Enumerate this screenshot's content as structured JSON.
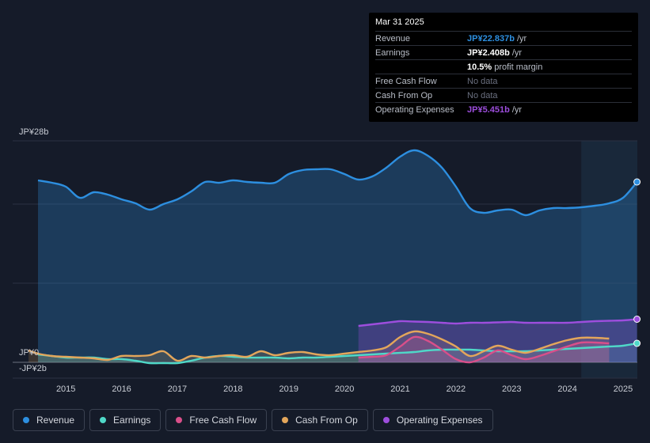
{
  "tooltip": {
    "date": "Mar 31 2025",
    "rows": [
      {
        "label": "Revenue",
        "value": "JP¥22.837b",
        "unit": "/yr",
        "color": "#2d8fe0"
      },
      {
        "label": "Earnings",
        "value": "JP¥2.408b",
        "unit": "/yr",
        "color": "#ffffff"
      },
      {
        "label": "",
        "value": "10.5%",
        "unit": "profit margin",
        "color": "#ffffff"
      },
      {
        "label": "Free Cash Flow",
        "value": "No data",
        "unit": "",
        "color": "#6b7080"
      },
      {
        "label": "Cash From Op",
        "value": "No data",
        "unit": "",
        "color": "#6b7080"
      },
      {
        "label": "Operating Expenses",
        "value": "JP¥5.451b",
        "unit": "/yr",
        "color": "#9d4edd"
      }
    ]
  },
  "legend": [
    {
      "label": "Revenue",
      "color": "#2d8fe0"
    },
    {
      "label": "Earnings",
      "color": "#4fd8c8"
    },
    {
      "label": "Free Cash Flow",
      "color": "#d94f8a"
    },
    {
      "label": "Cash From Op",
      "color": "#e3a65b"
    },
    {
      "label": "Operating Expenses",
      "color": "#9d4edd"
    }
  ],
  "chart_data": {
    "type": "area",
    "title": "",
    "y_top_label": "JP¥28b",
    "y_zero_label": "JP¥0",
    "y_bottom_label": "-JP¥2b",
    "ylim": [
      -2,
      28
    ],
    "xlim": [
      2014.33,
      2025.25
    ],
    "x_ticks": [
      "2015",
      "2016",
      "2017",
      "2018",
      "2019",
      "2020",
      "2021",
      "2022",
      "2023",
      "2024",
      "2025"
    ],
    "x_tick_values": [
      2015,
      2016,
      2017,
      2018,
      2019,
      2020,
      2021,
      2022,
      2023,
      2024,
      2025
    ],
    "forecast_start": 2024.25,
    "series": [
      {
        "name": "Revenue",
        "color": "#2d8fe0",
        "fill": true,
        "x": [
          2014.5,
          2014.75,
          2015.0,
          2015.25,
          2015.5,
          2015.75,
          2016.0,
          2016.25,
          2016.5,
          2016.75,
          2017.0,
          2017.25,
          2017.5,
          2017.75,
          2018.0,
          2018.25,
          2018.5,
          2018.75,
          2019.0,
          2019.25,
          2019.5,
          2019.75,
          2020.0,
          2020.25,
          2020.5,
          2020.75,
          2021.0,
          2021.25,
          2021.5,
          2021.75,
          2022.0,
          2022.25,
          2022.5,
          2022.75,
          2023.0,
          2023.25,
          2023.5,
          2023.75,
          2024.0,
          2024.25,
          2024.5,
          2024.75,
          2025.0,
          2025.25
        ],
        "values": [
          23.0,
          22.7,
          22.2,
          20.8,
          21.5,
          21.2,
          20.6,
          20.1,
          19.3,
          20.0,
          20.6,
          21.6,
          22.8,
          22.7,
          23.0,
          22.8,
          22.7,
          22.7,
          23.8,
          24.3,
          24.4,
          24.4,
          23.8,
          23.1,
          23.5,
          24.6,
          26.0,
          26.8,
          26.1,
          24.6,
          22.2,
          19.5,
          18.9,
          19.2,
          19.3,
          18.6,
          19.2,
          19.5,
          19.5,
          19.6,
          19.8,
          20.1,
          20.8,
          22.8
        ]
      },
      {
        "name": "Earnings",
        "color": "#4fd8c8",
        "fill": true,
        "x": [
          2014.5,
          2014.75,
          2015.0,
          2015.25,
          2015.5,
          2015.75,
          2016.0,
          2016.25,
          2016.5,
          2016.75,
          2017.0,
          2017.25,
          2017.5,
          2017.75,
          2018.0,
          2018.25,
          2018.5,
          2018.75,
          2019.0,
          2019.25,
          2019.5,
          2019.75,
          2020.0,
          2020.25,
          2020.5,
          2020.75,
          2021.0,
          2021.25,
          2021.5,
          2021.75,
          2022.0,
          2022.25,
          2022.5,
          2022.75,
          2023.0,
          2023.25,
          2023.5,
          2023.75,
          2024.0,
          2024.25,
          2024.5,
          2024.75,
          2025.0,
          2025.25
        ],
        "values": [
          1.0,
          0.8,
          0.6,
          0.6,
          0.6,
          0.4,
          0.4,
          0.2,
          -0.1,
          -0.1,
          -0.1,
          0.2,
          0.6,
          0.8,
          0.7,
          0.6,
          0.6,
          0.6,
          0.5,
          0.6,
          0.6,
          0.7,
          0.8,
          0.9,
          1.0,
          1.1,
          1.2,
          1.3,
          1.5,
          1.6,
          1.6,
          1.6,
          1.5,
          1.4,
          1.4,
          1.4,
          1.5,
          1.6,
          1.7,
          1.8,
          1.9,
          2.0,
          2.1,
          2.4
        ]
      },
      {
        "name": "Free Cash Flow",
        "color": "#d94f8a",
        "fill": true,
        "x": [
          2020.25,
          2020.5,
          2020.75,
          2021.0,
          2021.25,
          2021.5,
          2021.75,
          2022.0,
          2022.25,
          2022.5,
          2022.75,
          2023.0,
          2023.25,
          2023.5,
          2023.75,
          2024.0,
          2024.25,
          2024.5,
          2024.75
        ],
        "values": [
          0.6,
          0.7,
          0.9,
          2.0,
          3.2,
          2.7,
          1.6,
          0.4,
          0.0,
          0.6,
          1.5,
          0.9,
          0.4,
          0.8,
          1.4,
          2.0,
          2.5,
          2.5,
          2.4
        ]
      },
      {
        "name": "Cash From Op",
        "color": "#e3a65b",
        "fill": true,
        "x": [
          2014.33,
          2014.5,
          2014.75,
          2015.0,
          2015.25,
          2015.5,
          2015.75,
          2016.0,
          2016.25,
          2016.5,
          2016.75,
          2017.0,
          2017.25,
          2017.5,
          2017.75,
          2018.0,
          2018.25,
          2018.5,
          2018.75,
          2019.0,
          2019.25,
          2019.5,
          2019.75,
          2020.0,
          2020.25,
          2020.5,
          2020.75,
          2021.0,
          2021.25,
          2021.5,
          2021.75,
          2022.0,
          2022.25,
          2022.5,
          2022.75,
          2023.0,
          2023.25,
          2023.5,
          2023.75,
          2024.0,
          2024.25,
          2024.5,
          2024.75
        ],
        "values": [
          1.5,
          1.1,
          0.8,
          0.7,
          0.6,
          0.5,
          0.3,
          0.8,
          0.8,
          0.9,
          1.4,
          0.2,
          0.8,
          0.6,
          0.8,
          0.9,
          0.7,
          1.4,
          0.9,
          1.2,
          1.3,
          1.0,
          0.9,
          1.1,
          1.3,
          1.5,
          1.9,
          3.2,
          3.9,
          3.6,
          2.9,
          2.0,
          0.8,
          1.4,
          2.1,
          1.6,
          1.2,
          1.7,
          2.3,
          2.8,
          3.1,
          3.1,
          3.0
        ]
      },
      {
        "name": "Operating Expenses",
        "color": "#9d4edd",
        "fill": true,
        "x": [
          2020.25,
          2020.5,
          2020.75,
          2021.0,
          2021.25,
          2021.5,
          2021.75,
          2022.0,
          2022.25,
          2022.5,
          2022.75,
          2023.0,
          2023.25,
          2023.5,
          2023.75,
          2024.0,
          2024.25,
          2024.5,
          2024.75,
          2025.0,
          2025.25
        ],
        "values": [
          4.6,
          4.8,
          5.0,
          5.2,
          5.15,
          5.1,
          5.0,
          4.9,
          5.0,
          5.0,
          5.05,
          5.1,
          5.0,
          5.0,
          5.0,
          5.0,
          5.1,
          5.2,
          5.25,
          5.3,
          5.45
        ]
      }
    ]
  }
}
